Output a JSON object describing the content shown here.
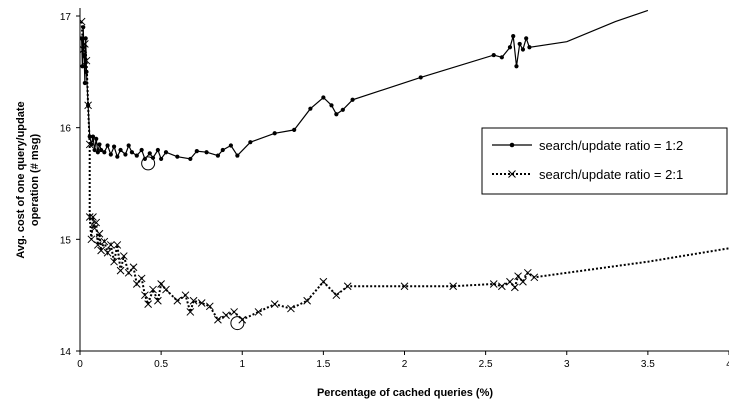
{
  "chart_data": {
    "type": "line",
    "xlabel": "Percentage of cached queries (%)",
    "ylabel": "Avg. cost of one query/update operation  (# msg)",
    "xlim": [
      0,
      4
    ],
    "ylim": [
      14,
      17
    ],
    "xticks": [
      "0",
      "0.5",
      "1",
      "1.5",
      "2",
      "2.5",
      "3",
      "3.5",
      "4"
    ],
    "yticks": [
      "14",
      "15",
      "16",
      "17"
    ],
    "grid": false,
    "legend_position": "right",
    "series": [
      {
        "name": "search/update ratio = 1:2",
        "style": "solid",
        "marker": "dot",
        "color": "#000000",
        "points": [
          [
            0.01,
            16.8
          ],
          [
            0.015,
            16.55
          ],
          [
            0.02,
            16.9
          ],
          [
            0.025,
            16.65
          ],
          [
            0.03,
            16.4
          ],
          [
            0.035,
            16.8
          ],
          [
            0.04,
            16.5
          ],
          [
            0.05,
            16.2
          ],
          [
            0.06,
            15.92
          ],
          [
            0.07,
            15.85
          ],
          [
            0.08,
            15.92
          ],
          [
            0.09,
            15.8
          ],
          [
            0.1,
            15.9
          ],
          [
            0.11,
            15.78
          ],
          [
            0.12,
            15.85
          ],
          [
            0.13,
            15.8
          ],
          [
            0.15,
            15.78
          ],
          [
            0.17,
            15.84
          ],
          [
            0.19,
            15.76
          ],
          [
            0.21,
            15.83
          ],
          [
            0.23,
            15.74
          ],
          [
            0.25,
            15.8
          ],
          [
            0.28,
            15.76
          ],
          [
            0.3,
            15.84
          ],
          [
            0.32,
            15.78
          ],
          [
            0.35,
            15.75
          ],
          [
            0.38,
            15.8
          ],
          [
            0.4,
            15.72
          ],
          [
            0.43,
            15.77
          ],
          [
            0.45,
            15.73
          ],
          [
            0.48,
            15.8
          ],
          [
            0.5,
            15.72
          ],
          [
            0.53,
            15.78
          ],
          [
            0.6,
            15.74
          ],
          [
            0.68,
            15.72
          ],
          [
            0.72,
            15.79
          ],
          [
            0.78,
            15.78
          ],
          [
            0.85,
            15.75
          ],
          [
            0.88,
            15.8
          ],
          [
            0.93,
            15.84
          ],
          [
            0.97,
            15.75
          ],
          [
            1.05,
            15.87
          ],
          [
            1.2,
            15.95
          ],
          [
            1.32,
            15.98
          ],
          [
            1.42,
            16.17
          ],
          [
            1.5,
            16.27
          ],
          [
            1.55,
            16.2
          ],
          [
            1.58,
            16.12
          ],
          [
            1.62,
            16.16
          ],
          [
            1.68,
            16.25
          ],
          [
            2.1,
            16.45
          ],
          [
            2.55,
            16.65
          ],
          [
            2.6,
            16.63
          ],
          [
            2.65,
            16.72
          ],
          [
            2.67,
            16.82
          ],
          [
            2.69,
            16.55
          ],
          [
            2.71,
            16.75
          ],
          [
            2.73,
            16.7
          ],
          [
            2.75,
            16.8
          ],
          [
            2.77,
            16.72
          ],
          [
            3.0,
            16.77
          ],
          [
            3.3,
            16.95
          ],
          [
            3.5,
            17.05
          ]
        ]
      },
      {
        "name": "search/update ratio = 2:1",
        "style": "dotted",
        "marker": "x",
        "color": "#000000",
        "points": [
          [
            0.01,
            16.95
          ],
          [
            0.02,
            16.7
          ],
          [
            0.03,
            16.75
          ],
          [
            0.04,
            16.6
          ],
          [
            0.05,
            16.2
          ],
          [
            0.06,
            15.85
          ],
          [
            0.06,
            15.2
          ],
          [
            0.07,
            15.0
          ],
          [
            0.08,
            15.2
          ],
          [
            0.09,
            15.1
          ],
          [
            0.1,
            15.15
          ],
          [
            0.11,
            14.95
          ],
          [
            0.12,
            15.05
          ],
          [
            0.13,
            14.9
          ],
          [
            0.15,
            14.98
          ],
          [
            0.17,
            14.88
          ],
          [
            0.19,
            14.95
          ],
          [
            0.21,
            14.8
          ],
          [
            0.23,
            14.95
          ],
          [
            0.25,
            14.72
          ],
          [
            0.27,
            14.85
          ],
          [
            0.3,
            14.7
          ],
          [
            0.33,
            14.75
          ],
          [
            0.35,
            14.6
          ],
          [
            0.38,
            14.65
          ],
          [
            0.4,
            14.5
          ],
          [
            0.42,
            14.42
          ],
          [
            0.45,
            14.55
          ],
          [
            0.48,
            14.45
          ],
          [
            0.5,
            14.6
          ],
          [
            0.53,
            14.55
          ],
          [
            0.6,
            14.45
          ],
          [
            0.65,
            14.5
          ],
          [
            0.68,
            14.35
          ],
          [
            0.7,
            14.45
          ],
          [
            0.75,
            14.43
          ],
          [
            0.8,
            14.4
          ],
          [
            0.85,
            14.28
          ],
          [
            0.9,
            14.32
          ],
          [
            0.95,
            14.35
          ],
          [
            1.0,
            14.28
          ],
          [
            1.1,
            14.35
          ],
          [
            1.2,
            14.42
          ],
          [
            1.3,
            14.38
          ],
          [
            1.4,
            14.45
          ],
          [
            1.5,
            14.62
          ],
          [
            1.58,
            14.5
          ],
          [
            1.65,
            14.58
          ],
          [
            2.0,
            14.58
          ],
          [
            2.3,
            14.58
          ],
          [
            2.55,
            14.6
          ],
          [
            2.6,
            14.58
          ],
          [
            2.65,
            14.62
          ],
          [
            2.68,
            14.57
          ],
          [
            2.7,
            14.67
          ],
          [
            2.73,
            14.62
          ],
          [
            2.76,
            14.7
          ],
          [
            2.8,
            14.66
          ],
          [
            3.0,
            14.7
          ],
          [
            3.5,
            14.8
          ],
          [
            4.0,
            14.92
          ]
        ]
      }
    ],
    "highlighted_minima": [
      {
        "series": 0,
        "x": 0.42,
        "y": 15.68
      },
      {
        "series": 1,
        "x": 0.97,
        "y": 14.25
      }
    ]
  }
}
